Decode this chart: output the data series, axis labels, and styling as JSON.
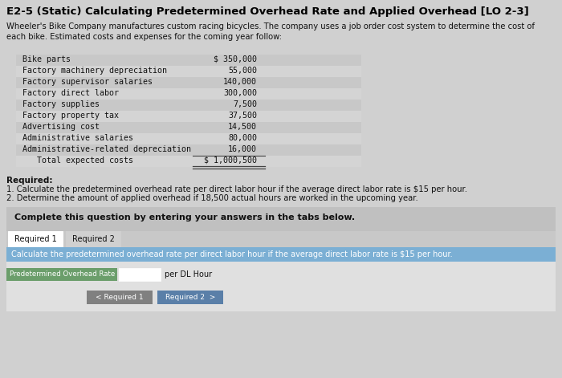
{
  "title": "E2-5 (Static) Calculating Predetermined Overhead Rate and Applied Overhead [LO 2-3]",
  "intro_text": "Wheeler's Bike Company manufactures custom racing bicycles. The company uses a job order cost system to determine the cost of\neach bike. Estimated costs and expenses for the coming year follow:",
  "cost_items": [
    [
      "Bike parts",
      "$ 350,000"
    ],
    [
      "Factory machinery depreciation",
      "55,000"
    ],
    [
      "Factory supervisor salaries",
      "140,000"
    ],
    [
      "Factory direct labor",
      "300,000"
    ],
    [
      "Factory supplies",
      "7,500"
    ],
    [
      "Factory property tax",
      "37,500"
    ],
    [
      "Advertising cost",
      "14,500"
    ],
    [
      "Administrative salaries",
      "80,000"
    ],
    [
      "Administrative-related depreciation",
      "16,000"
    ],
    [
      "   Total expected costs",
      "$ 1,000,500"
    ]
  ],
  "required_header": "Required:",
  "required_items": [
    "1. Calculate the predetermined overhead rate per direct labor hour if the average direct labor rate is $15 per hour.",
    "2. Determine the amount of applied overhead if 18,500 actual hours are worked in the upcoming year."
  ],
  "complete_text": "Complete this question by entering your answers in the tabs below.",
  "tab1_label": "Required 1",
  "tab2_label": "Required 2",
  "calc_text": "Calculate the predetermined overhead rate per direct labor hour if the average direct labor rate is $15 per hour.",
  "input_label": "Predetermined Overhead Rate",
  "input_unit": "per DL Hour",
  "nav_back": "< Required 1",
  "nav_next": "Required 2  >",
  "bg_color": "#d0d0d0",
  "page_bg": "#c8c8c8",
  "white": "#ffffff",
  "blue_bar": "#7bafd4",
  "blue_nav": "#5a7fa8",
  "green_label": "#6b9e6b",
  "tab_active_bg": "#ffffff",
  "tab_inactive_bg": "#d0d0d0",
  "title_color": "#000000",
  "text_color": "#111111",
  "row_even": "#c8c8c8",
  "row_odd": "#d4d4d4",
  "complete_box_bg": "#c0c0c0",
  "content_box_bg": "#e0e0e0"
}
